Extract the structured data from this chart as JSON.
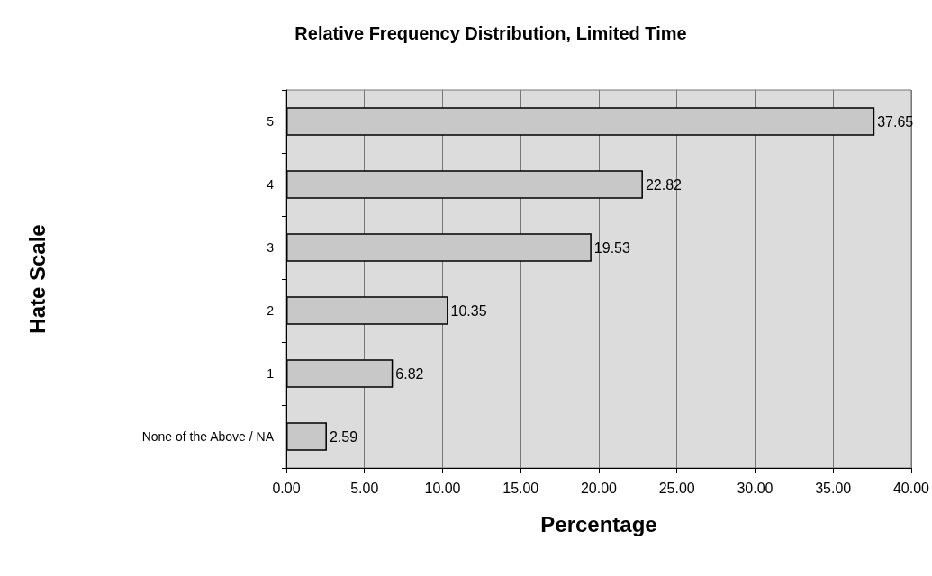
{
  "chart_data": {
    "type": "bar",
    "orientation": "horizontal",
    "title": "Relative Frequency Distribution, Limited Time",
    "xlabel": "Percentage",
    "ylabel": "Hate Scale",
    "categories": [
      "5",
      "4",
      "3",
      "2",
      "1",
      "None of the Above / NA"
    ],
    "values": [
      37.65,
      22.82,
      19.53,
      10.35,
      6.82,
      2.59
    ],
    "color": "#c8c8c8",
    "xlim": [
      0,
      40
    ],
    "xticks": [
      {
        "value": 0,
        "label": "0.00"
      },
      {
        "value": 5,
        "label": "5.00"
      },
      {
        "value": 10,
        "label": "10.00"
      },
      {
        "value": 15,
        "label": "15.00"
      },
      {
        "value": 20,
        "label": "20.00"
      },
      {
        "value": 25,
        "label": "25.00"
      },
      {
        "value": 30,
        "label": "30.00"
      },
      {
        "value": 35,
        "label": "35.00"
      },
      {
        "value": 40,
        "label": "40.00"
      }
    ],
    "grid": "x",
    "data_labels": true
  }
}
